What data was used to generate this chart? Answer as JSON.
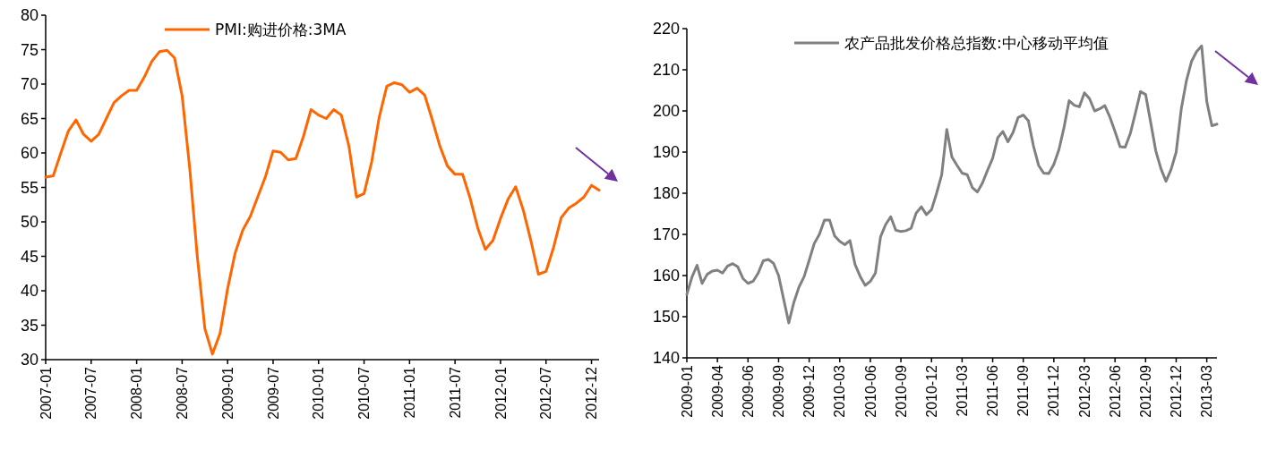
{
  "chart_data": [
    {
      "type": "line",
      "categories": [
        "2007-01",
        null,
        null,
        null,
        null,
        null,
        "2007-07",
        null,
        null,
        null,
        null,
        null,
        "2008-01",
        null,
        null,
        null,
        null,
        null,
        "2008-07",
        null,
        null,
        null,
        null,
        null,
        "2009-01",
        null,
        null,
        null,
        null,
        null,
        "2009-07",
        null,
        null,
        null,
        null,
        null,
        "2010-01",
        null,
        null,
        null,
        null,
        null,
        "2010-07",
        null,
        null,
        null,
        null,
        null,
        "2011-01",
        null,
        null,
        null,
        null,
        null,
        "2011-07",
        null,
        null,
        null,
        null,
        null,
        "2012-01",
        null,
        null,
        null,
        null,
        null,
        "2012-07",
        null,
        null,
        null,
        null,
        null,
        "2012-12",
        null
      ],
      "series": [
        {
          "name": "PMI:购进价格:3MA",
          "color": "#ff6600",
          "values": [
            56.5,
            56.7,
            60.0,
            63.2,
            64.8,
            62.7,
            61.7,
            62.7,
            65.0,
            67.3,
            68.3,
            69.1,
            69.1,
            71.0,
            73.3,
            74.7,
            74.9,
            73.8,
            68.3,
            57.8,
            45.0,
            34.5,
            30.8,
            33.8,
            40.3,
            45.5,
            48.8,
            50.8,
            53.7,
            56.6,
            60.3,
            60.1,
            59.0,
            59.2,
            62.4,
            66.3,
            65.5,
            65.0,
            66.3,
            65.5,
            61.0,
            53.6,
            54.1,
            58.7,
            65.2,
            69.7,
            70.2,
            69.9,
            68.8,
            69.4,
            68.4,
            64.8,
            61.0,
            58.1,
            56.9,
            56.9,
            53.4,
            49.1,
            46.0,
            47.3,
            50.5,
            53.3,
            55.1,
            51.7,
            47.3,
            42.4,
            42.8,
            46.3,
            50.6,
            52.0,
            52.7,
            53.6,
            55.3,
            54.6
          ]
        }
      ],
      "ylim": [
        30,
        80
      ],
      "yticks": [
        30,
        35,
        40,
        45,
        50,
        55,
        60,
        65,
        70,
        75,
        80
      ],
      "legend": "top",
      "marker": "none",
      "line_style": "solid"
    },
    {
      "type": "line",
      "categories": [
        "2009-01",
        null,
        null,
        null,
        null,
        null,
        "2009-04",
        null,
        null,
        null,
        null,
        null,
        "2009-06",
        null,
        null,
        null,
        null,
        null,
        "2009-09",
        null,
        null,
        null,
        null,
        null,
        "2009-12",
        null,
        null,
        null,
        null,
        null,
        "2010-03",
        null,
        null,
        null,
        null,
        null,
        "2010-06",
        null,
        null,
        null,
        null,
        null,
        "2010-09",
        null,
        null,
        null,
        null,
        null,
        "2010-12",
        null,
        null,
        null,
        null,
        null,
        "2011-03",
        null,
        null,
        null,
        null,
        null,
        "2011-06",
        null,
        null,
        null,
        null,
        null,
        "2011-09",
        null,
        null,
        null,
        null,
        null,
        "2011-12",
        null,
        null,
        null,
        null,
        null,
        "2012-03",
        null,
        null,
        null,
        null,
        null,
        "2012-06",
        null,
        null,
        null,
        null,
        null,
        "2012-09",
        null,
        null,
        null,
        null,
        null,
        "2012-12",
        null,
        null,
        null,
        null,
        null,
        "2013-03",
        null,
        null
      ],
      "series": [
        {
          "name": "农产品批发价格总指数:中心移动平均值",
          "color": "#808080",
          "values": [
            155.4,
            159.6,
            162.5,
            158.1,
            160.3,
            161.1,
            161.3,
            160.6,
            162.3,
            162.9,
            162.1,
            159.3,
            158.1,
            158.6,
            160.6,
            163.6,
            163.9,
            163.0,
            160.0,
            154.2,
            148.5,
            153.5,
            157.2,
            159.7,
            163.7,
            167.8,
            170.0,
            173.5,
            173.5,
            169.6,
            168.3,
            167.5,
            168.5,
            162.7,
            159.8,
            157.6,
            158.6,
            160.6,
            169.4,
            172.4,
            174.3,
            171.0,
            170.7,
            170.9,
            171.5,
            175.2,
            176.7,
            174.8,
            176.0,
            180.0,
            184.5,
            195.5,
            188.8,
            186.8,
            184.9,
            184.5,
            181.4,
            180.3,
            182.5,
            185.6,
            188.5,
            193.5,
            195.0,
            192.5,
            194.8,
            198.4,
            199.0,
            197.6,
            191.5,
            186.8,
            184.9,
            184.8,
            187.0,
            190.6,
            196.0,
            202.5,
            201.4,
            201.0,
            204.4,
            203.0,
            200.0,
            200.5,
            201.3,
            198.5,
            195.0,
            191.3,
            191.2,
            194.5,
            199.5,
            204.7,
            204.0,
            197.2,
            190.3,
            186.0,
            182.9,
            185.8,
            190.0,
            200.5,
            207.3,
            212.0,
            214.4,
            215.8,
            202.3,
            196.4,
            196.8
          ]
        }
      ],
      "ylim": [
        140,
        220
      ],
      "yticks": [
        140,
        150,
        160,
        170,
        180,
        190,
        200,
        210,
        220
      ],
      "legend": "top",
      "marker": "none",
      "line_style": "solid"
    }
  ]
}
